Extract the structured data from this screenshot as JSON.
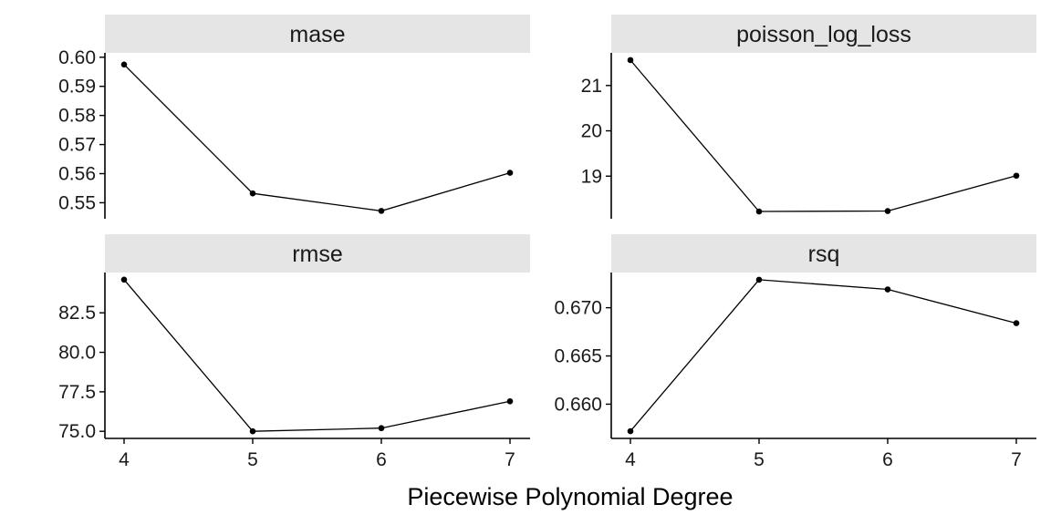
{
  "figure": {
    "xlabel": "Piecewise Polynomial Degree"
  },
  "chart_data": [
    {
      "type": "line",
      "title": "mase",
      "x": [
        4,
        5,
        6,
        7
      ],
      "values": [
        0.5975,
        0.5532,
        0.5472,
        0.5603
      ],
      "xticks": [
        "4",
        "5",
        "6",
        "7"
      ],
      "yticks": [
        0.55,
        0.56,
        0.57,
        0.58,
        0.59,
        0.6
      ],
      "ytick_labels": [
        "0.55",
        "0.56",
        "0.57",
        "0.58",
        "0.59",
        "0.60"
      ],
      "ylim": [
        0.5445,
        0.6015
      ],
      "show_xaxis": false
    },
    {
      "type": "line",
      "title": "poisson_log_loss",
      "x": [
        4,
        5,
        6,
        7
      ],
      "values": [
        21.56,
        18.22,
        18.23,
        19.01
      ],
      "xticks": [
        "4",
        "5",
        "6",
        "7"
      ],
      "yticks": [
        19,
        20,
        21
      ],
      "ytick_labels": [
        "19",
        "20",
        "21"
      ],
      "ylim": [
        18.06,
        21.72
      ],
      "show_xaxis": false
    },
    {
      "type": "line",
      "title": "rmse",
      "x": [
        4,
        5,
        6,
        7
      ],
      "values": [
        84.6,
        75.0,
        75.2,
        76.9
      ],
      "xticks": [
        "4",
        "5",
        "6",
        "7"
      ],
      "yticks": [
        75.0,
        77.5,
        80.0,
        82.5
      ],
      "ytick_labels": [
        "75.0",
        "77.5",
        "80.0",
        "82.5"
      ],
      "ylim": [
        74.55,
        85.05
      ],
      "show_xaxis": true
    },
    {
      "type": "line",
      "title": "rsq",
      "x": [
        4,
        5,
        6,
        7
      ],
      "values": [
        0.6572,
        0.6729,
        0.6719,
        0.6684
      ],
      "xticks": [
        "4",
        "5",
        "6",
        "7"
      ],
      "yticks": [
        0.66,
        0.665,
        0.67
      ],
      "ytick_labels": [
        "0.660",
        "0.665",
        "0.670"
      ],
      "ylim": [
        0.65645,
        0.67365
      ],
      "show_xaxis": true
    }
  ]
}
